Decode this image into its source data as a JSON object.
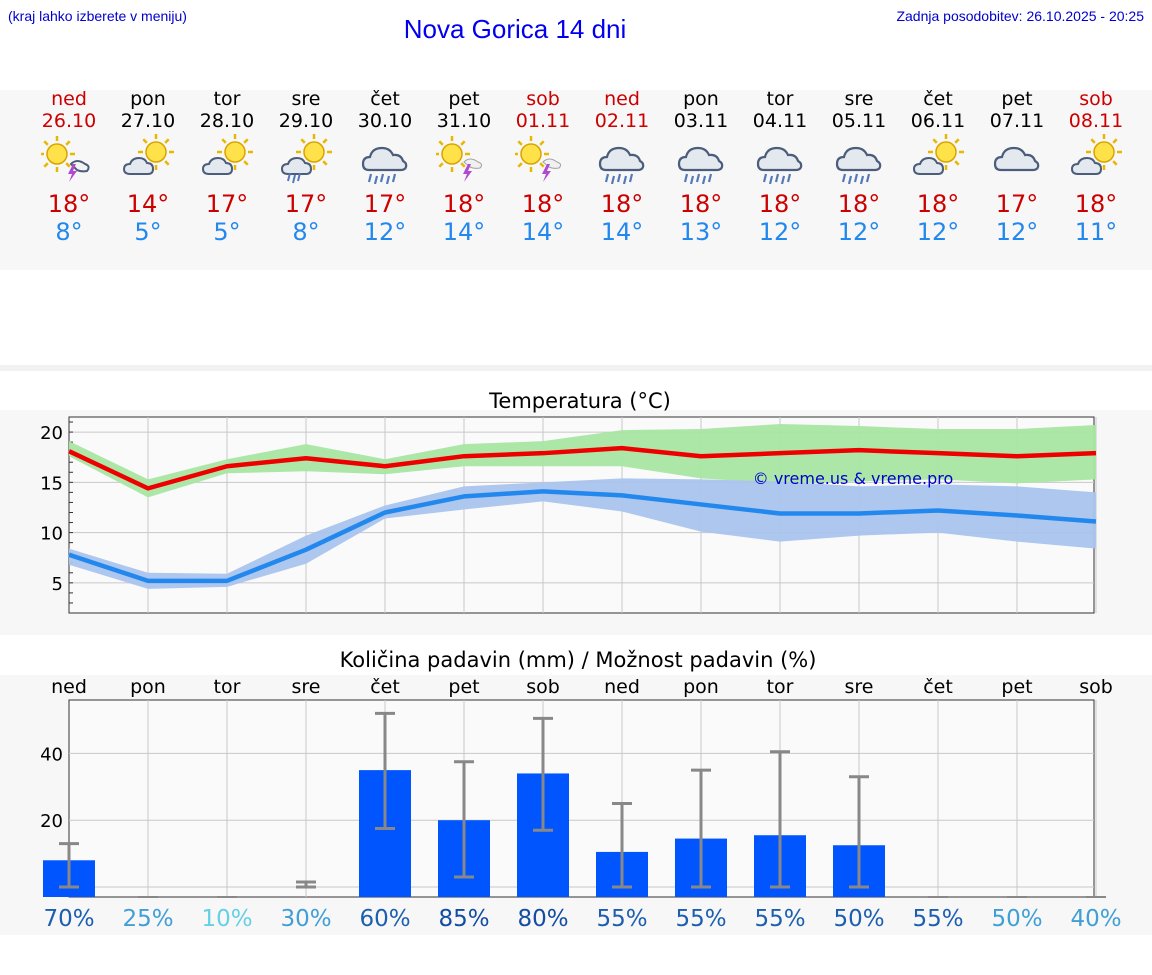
{
  "header": {
    "hint": "(kraj lahko izberete v meniju)",
    "title": "Nova Gorica 14 dni",
    "updated": "Zadnja posodobitev: 26.10.2025 - 20:25"
  },
  "days": [
    {
      "name": "ned",
      "date": "26.10",
      "weekend": true,
      "icon": "sun-cloud-thunder-icon",
      "tmax": "18°",
      "tmin": "8°"
    },
    {
      "name": "pon",
      "date": "27.10",
      "weekend": false,
      "icon": "sun-cloud-icon",
      "tmax": "14°",
      "tmin": "5°"
    },
    {
      "name": "tor",
      "date": "28.10",
      "weekend": false,
      "icon": "sun-cloud-icon",
      "tmax": "17°",
      "tmin": "5°"
    },
    {
      "name": "sre",
      "date": "29.10",
      "weekend": false,
      "icon": "sun-cloud-rain-icon",
      "tmax": "17°",
      "tmin": "8°"
    },
    {
      "name": "čet",
      "date": "30.10",
      "weekend": false,
      "icon": "cloud-rain-icon",
      "tmax": "17°",
      "tmin": "12°"
    },
    {
      "name": "pet",
      "date": "31.10",
      "weekend": false,
      "icon": "sun-thunder-icon",
      "tmax": "18°",
      "tmin": "14°"
    },
    {
      "name": "sob",
      "date": "01.11",
      "weekend": true,
      "icon": "sun-thunder-icon",
      "tmax": "18°",
      "tmin": "14°"
    },
    {
      "name": "ned",
      "date": "02.11",
      "weekend": true,
      "icon": "cloud-rain-icon",
      "tmax": "18°",
      "tmin": "14°"
    },
    {
      "name": "pon",
      "date": "03.11",
      "weekend": false,
      "icon": "cloud-rain-icon",
      "tmax": "18°",
      "tmin": "13°"
    },
    {
      "name": "tor",
      "date": "04.11",
      "weekend": false,
      "icon": "cloud-rain-icon",
      "tmax": "18°",
      "tmin": "12°"
    },
    {
      "name": "sre",
      "date": "05.11",
      "weekend": false,
      "icon": "cloud-rain-icon",
      "tmax": "18°",
      "tmin": "12°"
    },
    {
      "name": "čet",
      "date": "06.11",
      "weekend": false,
      "icon": "sun-cloud-icon",
      "tmax": "18°",
      "tmin": "12°"
    },
    {
      "name": "pet",
      "date": "07.11",
      "weekend": false,
      "icon": "cloud-icon",
      "tmax": "17°",
      "tmin": "12°"
    },
    {
      "name": "sob",
      "date": "08.11",
      "weekend": true,
      "icon": "sun-cloud-icon",
      "tmax": "18°",
      "tmin": "11°"
    }
  ],
  "colors": {
    "weekend": "#cc0000",
    "max_line": "#ee0000",
    "max_band": "#a8e6a3",
    "min_line": "#2288ee",
    "min_band": "#aac4ee",
    "bar": "#0055ff",
    "errbar": "#888888"
  },
  "chart_data": [
    {
      "type": "line",
      "title": "Temperatura (°C)",
      "watermark": "© vreme.us & vreme.pro",
      "x": [
        0,
        1,
        2,
        3,
        4,
        5,
        6,
        7,
        8,
        9,
        10,
        11,
        12,
        13
      ],
      "ylim": [
        2,
        21.5
      ],
      "yticks": [
        5,
        10,
        15,
        20
      ],
      "grid": true,
      "series": [
        {
          "role": "max",
          "values": [
            18.1,
            14.4,
            16.6,
            17.4,
            16.6,
            17.6,
            17.9,
            18.4,
            17.6,
            17.9,
            18.2,
            17.9,
            17.6,
            17.9
          ]
        },
        {
          "role": "max_upper",
          "values": [
            19.1,
            15.3,
            17.3,
            18.8,
            17.3,
            18.8,
            19.1,
            20.2,
            20.3,
            20.8,
            20.6,
            20.3,
            20.3,
            20.7
          ]
        },
        {
          "role": "max_lower",
          "values": [
            17.6,
            13.5,
            15.9,
            16.1,
            15.8,
            16.6,
            16.6,
            16.6,
            15.4,
            14.9,
            15.1,
            15.3,
            14.9,
            15.3
          ]
        },
        {
          "role": "min",
          "values": [
            7.8,
            5.2,
            5.2,
            8.3,
            12.0,
            13.6,
            14.1,
            13.7,
            12.8,
            11.9,
            11.9,
            12.2,
            11.7,
            11.1
          ]
        },
        {
          "role": "min_upper",
          "values": [
            8.4,
            6.0,
            5.9,
            9.7,
            12.7,
            14.6,
            15.0,
            15.4,
            15.3,
            15.1,
            14.6,
            14.8,
            14.6,
            14.0
          ]
        },
        {
          "role": "min_lower",
          "values": [
            6.8,
            4.4,
            4.6,
            6.9,
            11.4,
            12.3,
            13.1,
            12.1,
            10.1,
            9.1,
            9.7,
            10.0,
            9.1,
            8.4
          ]
        }
      ]
    },
    {
      "type": "bar",
      "title": "Količina padavin (mm) / Možnost padavin (%)",
      "categories": [
        "ned",
        "pon",
        "tor",
        "sre",
        "čet",
        "pet",
        "sob",
        "ned",
        "pon",
        "tor",
        "sre",
        "čet",
        "pet",
        "sob"
      ],
      "values": [
        8,
        0,
        0,
        0.5,
        35,
        20,
        34,
        10.5,
        14.5,
        15.5,
        12.5,
        0,
        0,
        0
      ],
      "err_high": [
        13,
        0,
        0,
        1.5,
        52,
        37.5,
        50.5,
        25,
        35,
        40.5,
        33,
        0,
        0,
        0
      ],
      "err_low": [
        0,
        0,
        0,
        0,
        17.5,
        3,
        17,
        0,
        0,
        0,
        0,
        0,
        0,
        0
      ],
      "yticks": [
        0,
        20,
        40
      ],
      "ylim": [
        -3,
        56
      ],
      "probability": [
        "70%",
        "25%",
        "10%",
        "30%",
        "60%",
        "85%",
        "80%",
        "55%",
        "55%",
        "55%",
        "50%",
        "55%",
        "50%",
        "40%"
      ],
      "probability_colors": [
        "#1c5fb0",
        "#3f9fd6",
        "#66d0e6",
        "#3f9fd6",
        "#1c5fb0",
        "#134da3",
        "#134da3",
        "#1c5fb0",
        "#1c5fb0",
        "#1c5fb0",
        "#1c5fb0",
        "#1c5fb0",
        "#3f9fd6",
        "#3f9fd6"
      ]
    }
  ]
}
